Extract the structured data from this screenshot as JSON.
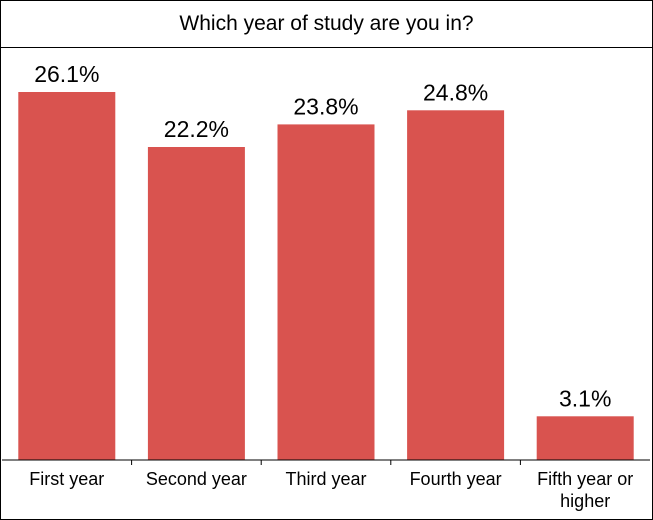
{
  "chart_data": {
    "type": "bar",
    "title": "Which year of study are you in?",
    "categories": [
      "First year",
      "Second year",
      "Third year",
      "Fourth year",
      "Fifth year or higher"
    ],
    "category_lines": [
      [
        "First year"
      ],
      [
        "Second year"
      ],
      [
        "Third year"
      ],
      [
        "Fourth year"
      ],
      [
        "Fifth year or",
        "higher"
      ]
    ],
    "values": [
      26.1,
      22.2,
      23.8,
      24.8,
      3.1
    ],
    "value_labels": [
      "26.1%",
      "22.2%",
      "23.8%",
      "24.8%",
      "3.1%"
    ],
    "xlabel": "",
    "ylabel": "",
    "grid": false,
    "bar_color": "#D9534F"
  }
}
